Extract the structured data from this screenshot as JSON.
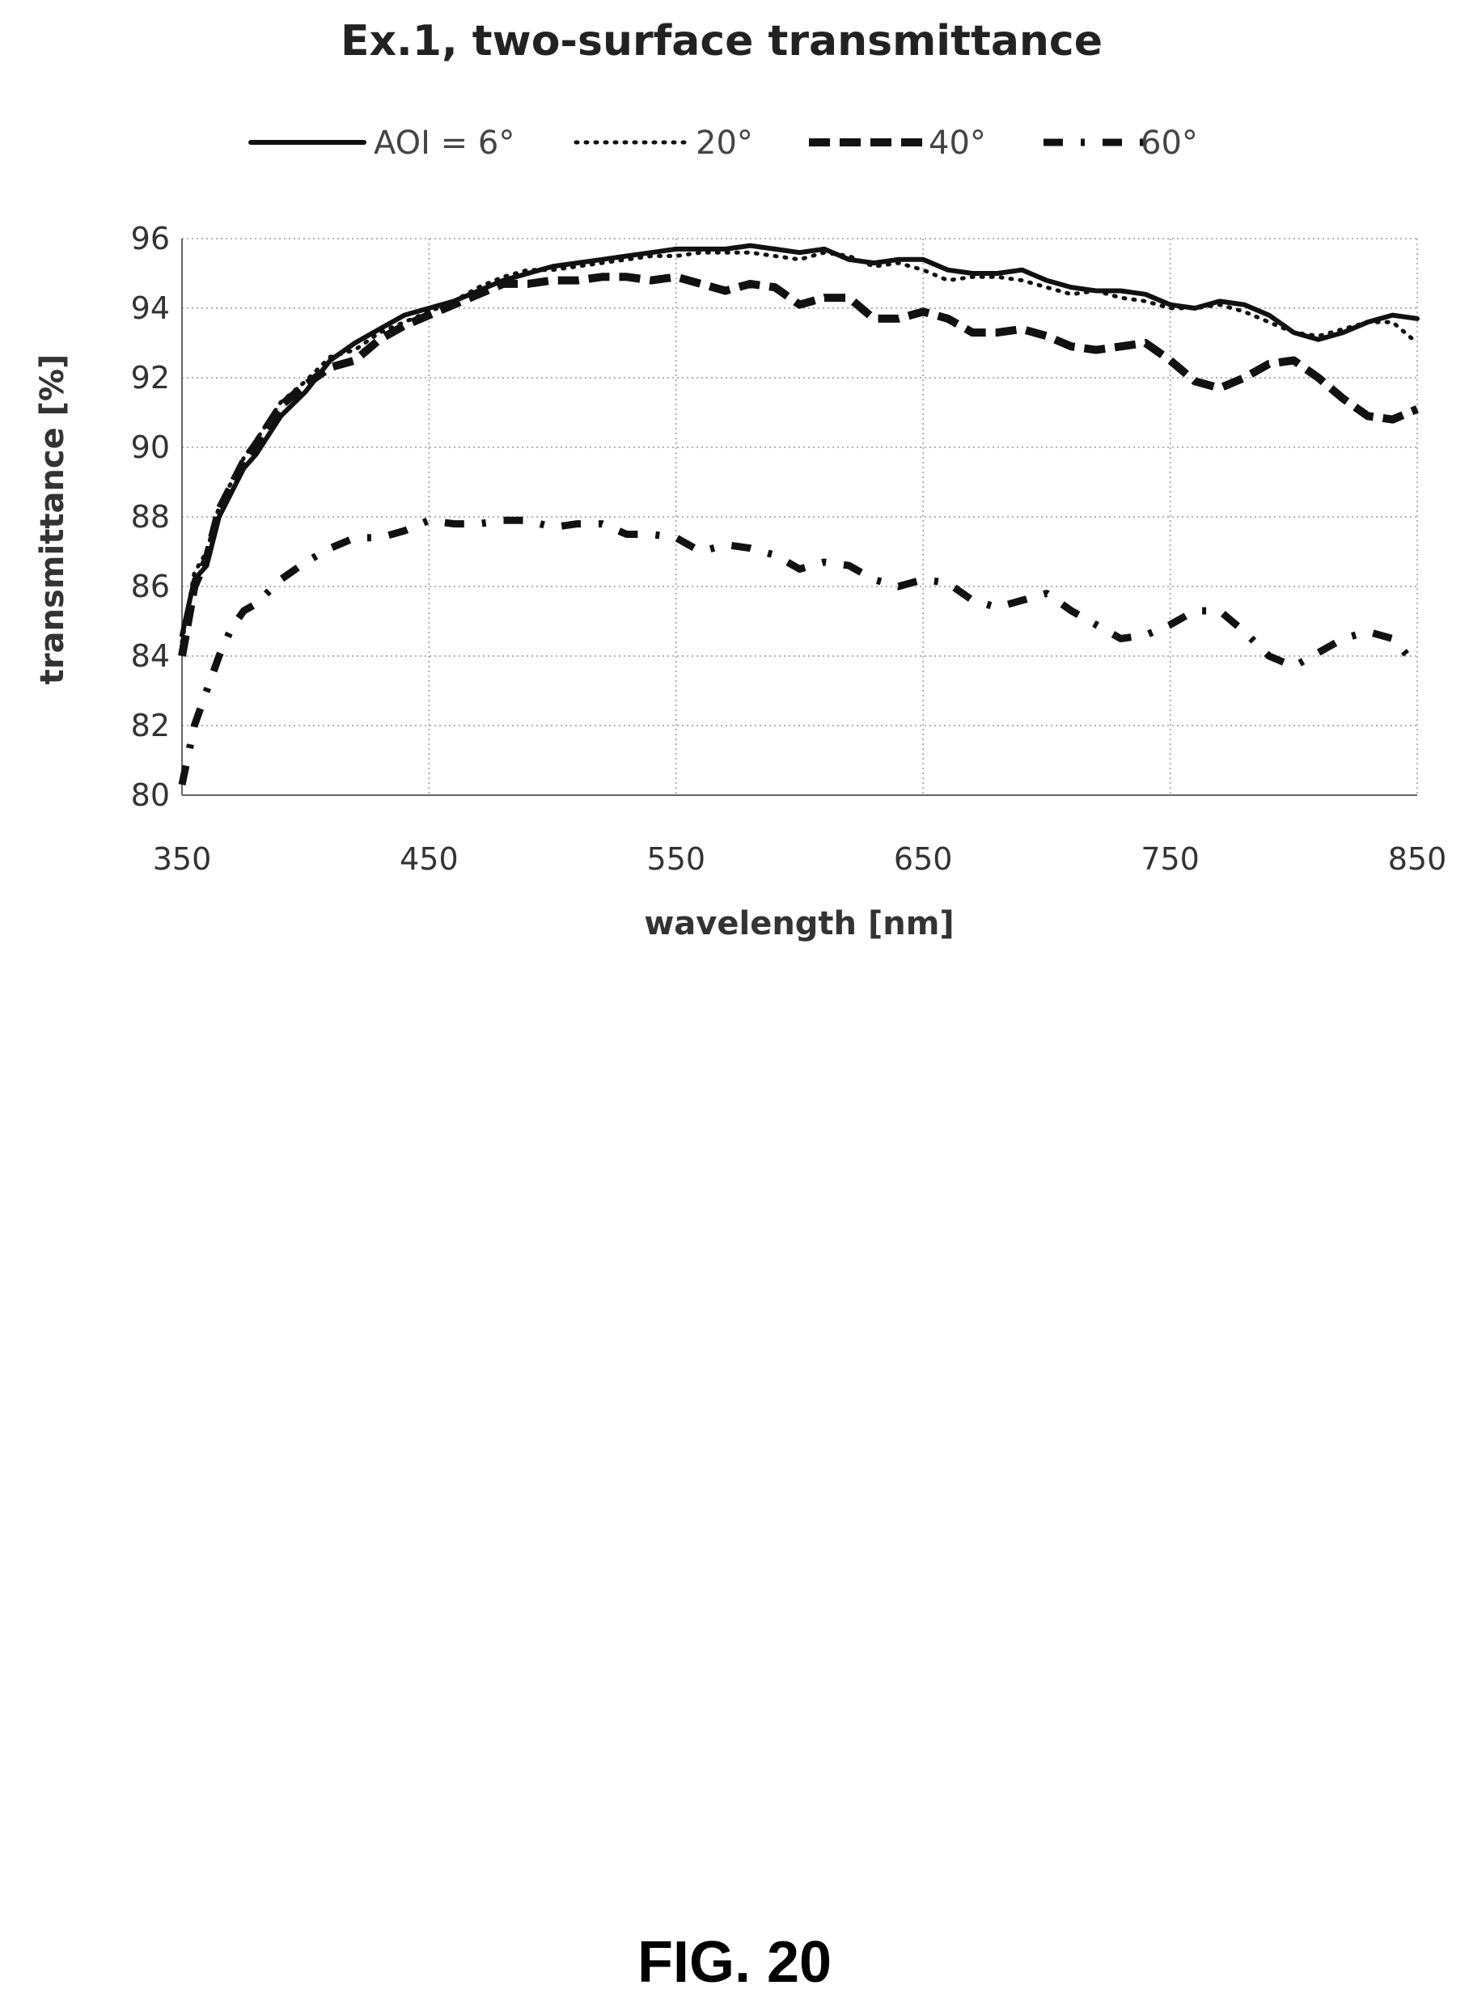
{
  "figure_caption": "FIG. 20",
  "chart_data": {
    "type": "line",
    "title": "Ex.1, two-surface transmittance",
    "xlabel": "wavelength [nm]",
    "ylabel": "transmittance [%]",
    "xlim": [
      350,
      850
    ],
    "ylim": [
      80,
      96
    ],
    "xticks": [
      350,
      450,
      550,
      650,
      750,
      850
    ],
    "yticks": [
      80,
      82,
      84,
      86,
      88,
      90,
      92,
      94,
      96
    ],
    "grid": true,
    "legend_position": "top",
    "series": [
      {
        "name": "AOI = 6°",
        "style": "solid",
        "x": [
          350,
          355,
          360,
          365,
          370,
          375,
          380,
          390,
          400,
          410,
          420,
          430,
          440,
          450,
          460,
          470,
          480,
          490,
          500,
          510,
          520,
          530,
          540,
          550,
          560,
          570,
          580,
          590,
          600,
          610,
          620,
          630,
          640,
          650,
          660,
          670,
          680,
          690,
          700,
          710,
          720,
          730,
          740,
          750,
          760,
          770,
          780,
          790,
          800,
          810,
          820,
          830,
          840,
          850
        ],
        "y": [
          84.6,
          86.2,
          86.6,
          88.0,
          88.7,
          89.4,
          89.8,
          90.9,
          91.6,
          92.5,
          93.0,
          93.4,
          93.8,
          94.0,
          94.2,
          94.5,
          94.8,
          95.0,
          95.2,
          95.3,
          95.4,
          95.5,
          95.6,
          95.7,
          95.7,
          95.7,
          95.8,
          95.7,
          95.6,
          95.7,
          95.4,
          95.3,
          95.4,
          95.4,
          95.1,
          95.0,
          95.0,
          95.1,
          94.8,
          94.6,
          94.5,
          94.5,
          94.4,
          94.1,
          94.0,
          94.2,
          94.1,
          93.8,
          93.3,
          93.1,
          93.3,
          93.6,
          93.8,
          93.7
        ]
      },
      {
        "name": "20°",
        "style": "dotted",
        "x": [
          350,
          355,
          360,
          365,
          370,
          375,
          380,
          390,
          400,
          410,
          420,
          430,
          440,
          450,
          460,
          470,
          480,
          490,
          500,
          510,
          520,
          530,
          540,
          550,
          560,
          570,
          580,
          590,
          600,
          610,
          620,
          630,
          640,
          650,
          660,
          670,
          680,
          690,
          700,
          710,
          720,
          730,
          740,
          750,
          760,
          770,
          780,
          790,
          800,
          810,
          820,
          830,
          840,
          850
        ],
        "y": [
          84.4,
          86.4,
          87.0,
          88.3,
          89.0,
          89.7,
          90.2,
          91.3,
          91.9,
          92.6,
          92.8,
          93.3,
          93.6,
          93.9,
          94.2,
          94.6,
          94.9,
          95.1,
          95.1,
          95.2,
          95.3,
          95.4,
          95.5,
          95.5,
          95.6,
          95.6,
          95.6,
          95.5,
          95.4,
          95.6,
          95.5,
          95.2,
          95.3,
          95.1,
          94.8,
          94.9,
          94.9,
          94.8,
          94.6,
          94.4,
          94.5,
          94.3,
          94.2,
          94.0,
          94.0,
          94.1,
          93.9,
          93.6,
          93.3,
          93.2,
          93.4,
          93.6,
          93.6,
          93.0
        ]
      },
      {
        "name": "40°",
        "style": "dashed",
        "x": [
          350,
          355,
          360,
          365,
          370,
          375,
          380,
          390,
          400,
          410,
          420,
          430,
          440,
          450,
          460,
          470,
          480,
          490,
          500,
          510,
          520,
          530,
          540,
          550,
          560,
          570,
          580,
          590,
          600,
          610,
          620,
          630,
          640,
          650,
          660,
          670,
          680,
          690,
          700,
          710,
          720,
          730,
          740,
          750,
          760,
          770,
          780,
          790,
          800,
          810,
          820,
          830,
          840,
          850
        ],
        "y": [
          84.0,
          86.0,
          86.8,
          88.2,
          88.9,
          89.6,
          90.1,
          91.2,
          91.8,
          92.3,
          92.5,
          93.1,
          93.5,
          93.8,
          94.1,
          94.4,
          94.7,
          94.7,
          94.8,
          94.8,
          94.9,
          94.9,
          94.8,
          94.9,
          94.7,
          94.5,
          94.7,
          94.6,
          94.1,
          94.3,
          94.3,
          93.7,
          93.7,
          93.9,
          93.7,
          93.3,
          93.3,
          93.4,
          93.2,
          92.9,
          92.8,
          92.9,
          93.0,
          92.5,
          91.9,
          91.7,
          92.0,
          92.4,
          92.5,
          92.0,
          91.4,
          90.9,
          90.8,
          91.1
        ]
      },
      {
        "name": "60°",
        "style": "dash-dot",
        "x": [
          350,
          355,
          360,
          365,
          370,
          375,
          380,
          390,
          400,
          410,
          420,
          430,
          440,
          450,
          460,
          470,
          480,
          490,
          500,
          510,
          520,
          530,
          540,
          550,
          560,
          570,
          580,
          590,
          600,
          610,
          620,
          630,
          640,
          650,
          660,
          670,
          680,
          690,
          700,
          710,
          720,
          730,
          740,
          750,
          760,
          770,
          780,
          790,
          800,
          810,
          820,
          830,
          840,
          850
        ],
        "y": [
          80.3,
          82.0,
          83.0,
          84.0,
          84.8,
          85.3,
          85.5,
          86.2,
          86.7,
          87.1,
          87.4,
          87.4,
          87.6,
          87.9,
          87.8,
          87.8,
          87.9,
          87.9,
          87.7,
          87.8,
          87.8,
          87.5,
          87.5,
          87.4,
          87.0,
          87.2,
          87.1,
          86.9,
          86.5,
          86.7,
          86.6,
          86.2,
          86.0,
          86.2,
          86.1,
          85.6,
          85.4,
          85.6,
          85.8,
          85.3,
          84.9,
          84.5,
          84.6,
          84.9,
          85.3,
          85.3,
          84.7,
          84.0,
          83.7,
          84.1,
          84.5,
          84.7,
          84.5,
          83.7
        ]
      }
    ]
  }
}
